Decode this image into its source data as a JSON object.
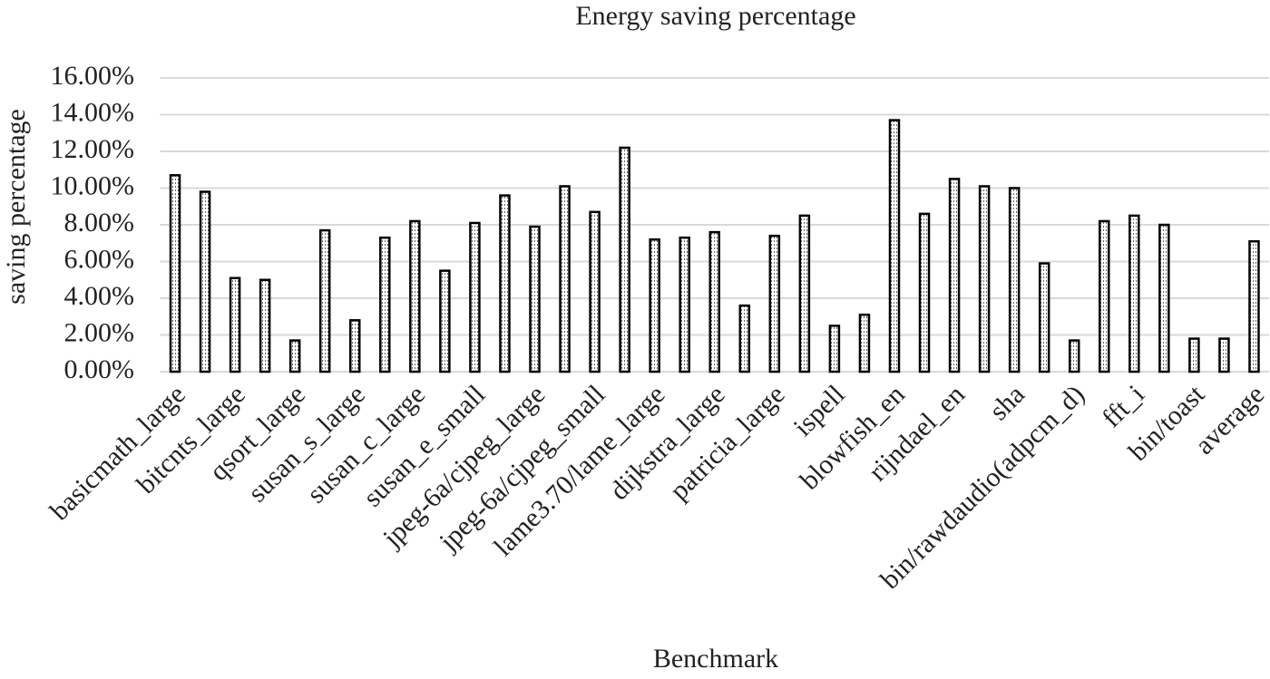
{
  "chart_data": {
    "type": "bar",
    "title": "Energy saving percentage",
    "x_label": "Benchmark",
    "y_label": "saving percentage",
    "categories": [
      "basicmath_large",
      null,
      "bitcnts_large",
      null,
      "qsort_large",
      null,
      "susan_s_large",
      null,
      "susan_c_large",
      null,
      "susan_e_small",
      null,
      "jpeg-6a/cjpeg_large",
      null,
      "jpeg-6a/cjpeg_small",
      null,
      "lame3.70/lame_large",
      null,
      "dijkstra_large",
      null,
      "patricia_large",
      null,
      "ispell",
      null,
      "blowfish_en",
      null,
      "rijndael_en",
      null,
      "sha",
      null,
      "bin/rawdaudio(adpcm_d)",
      null,
      "fft_i",
      null,
      "bin/toast",
      null,
      "average"
    ],
    "values": [
      10.7,
      9.8,
      5.1,
      5.0,
      1.7,
      7.7,
      2.8,
      7.3,
      8.2,
      5.5,
      8.1,
      9.6,
      7.9,
      10.1,
      8.7,
      12.2,
      7.2,
      7.3,
      7.6,
      3.6,
      7.4,
      8.5,
      2.5,
      3.1,
      13.7,
      8.6,
      10.5,
      10.1,
      10.0,
      5.9,
      1.7,
      8.2,
      8.5,
      8.0,
      1.8,
      1.8,
      7.1
    ],
    "color": "#000000",
    "ylim": [
      0,
      16
    ],
    "yticks": [
      {
        "value": 0,
        "label": "0.00%"
      },
      {
        "value": 2,
        "label": "2.00%"
      },
      {
        "value": 4,
        "label": "4.00%"
      },
      {
        "value": 6,
        "label": "6.00%"
      },
      {
        "value": 8,
        "label": "8.00%"
      },
      {
        "value": 10,
        "label": "10.00%"
      },
      {
        "value": 12,
        "label": "12.00%"
      },
      {
        "value": 14,
        "label": "14.00%"
      },
      {
        "value": 16,
        "label": "16.00%"
      }
    ],
    "grid": true
  }
}
